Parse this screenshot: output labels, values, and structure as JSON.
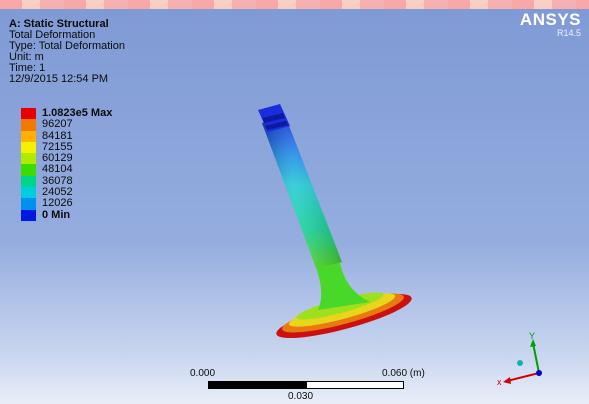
{
  "info": {
    "analysis": "A: Static Structural",
    "result": "Total Deformation",
    "type": "Type: Total Deformation",
    "unit": "Unit: m",
    "time": "Time: 1",
    "date": "12/9/2015 12:54 PM"
  },
  "logo": {
    "name": "ANSYS",
    "version": "R14.5"
  },
  "legend": {
    "items": [
      {
        "label": "1.0823e5 Max",
        "color": "#e60000",
        "bold": true
      },
      {
        "label": "96207",
        "color": "#f07a00",
        "bold": false
      },
      {
        "label": "84181",
        "color": "#ffb000",
        "bold": false
      },
      {
        "label": "72155",
        "color": "#f4f000",
        "bold": false
      },
      {
        "label": "60129",
        "color": "#b0ea00",
        "bold": false
      },
      {
        "label": "48104",
        "color": "#3cdc00",
        "bold": false
      },
      {
        "label": "36078",
        "color": "#00d48a",
        "bold": false
      },
      {
        "label": "24052",
        "color": "#00cde0",
        "bold": false
      },
      {
        "label": "12026",
        "color": "#0090f0",
        "bold": false
      },
      {
        "label": "0 Min",
        "color": "#0018e0",
        "bold": true
      }
    ]
  },
  "scale": {
    "left": "0.000",
    "right": "0.060 (m)",
    "mid": "0.030"
  },
  "triad": {
    "y_label": "Y",
    "x_color": "#d00000",
    "y_color": "#00a000",
    "z_color": "#0000c8"
  }
}
